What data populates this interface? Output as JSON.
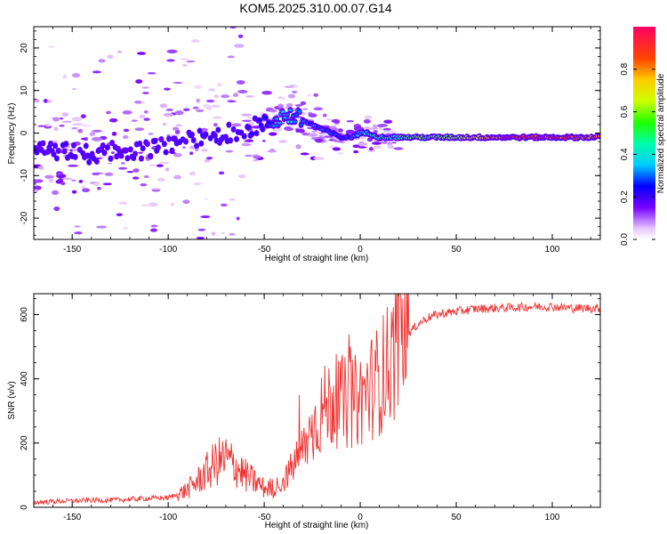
{
  "title": "KOM5.2025.310.00.07.G14",
  "chart_data": [
    {
      "type": "heatmap",
      "title": "KOM5.2025.310.00.07.G14",
      "xlabel": "Height of straight line (km)",
      "ylabel": "Frequency (Hz)",
      "xlim": [
        -170,
        125
      ],
      "ylim": [
        -25,
        25
      ],
      "xticks": [
        -150,
        -100,
        -50,
        0,
        50,
        100
      ],
      "xtick_labels": [
        "-150",
        "-100",
        "-50",
        "0",
        "50",
        "100"
      ],
      "yticks": [
        20,
        10,
        0,
        -10,
        -20
      ],
      "ytick_labels": [
        "20",
        "10",
        "0",
        "-10",
        "-20"
      ],
      "colorbar": {
        "label": "Normalized spectral amplitude",
        "range": [
          0,
          1
        ],
        "ticks": [
          0.0,
          0.2,
          0.4,
          0.6,
          0.8
        ],
        "tick_labels": [
          "0.0",
          "0.2",
          "0.4",
          "0.6",
          "0.8"
        ]
      },
      "ridge": {
        "x": [
          -160,
          -140,
          -125,
          -110,
          -100,
          -90,
          -80,
          -70,
          -60,
          -50,
          -45,
          -40,
          -35,
          -30,
          -25,
          -20,
          -15,
          -10,
          -5,
          0,
          5,
          10,
          20,
          30,
          40,
          50,
          60,
          70,
          80,
          90,
          100,
          110,
          125
        ],
        "freq": [
          -4,
          -5,
          -4,
          -4,
          -3,
          -2,
          -1,
          0,
          1,
          2,
          3,
          4,
          4,
          3,
          2,
          1,
          0,
          -1,
          -1,
          0,
          0,
          -1,
          -1,
          -1,
          -1,
          -1,
          -1,
          -1,
          -1,
          -1,
          -1,
          -1,
          -1
        ],
        "amplitude": [
          0.18,
          0.18,
          0.17,
          0.17,
          0.18,
          0.18,
          0.2,
          0.2,
          0.2,
          0.22,
          0.28,
          0.35,
          0.35,
          0.32,
          0.3,
          0.3,
          0.28,
          0.25,
          0.28,
          0.35,
          0.4,
          0.45,
          0.5,
          0.55,
          0.55,
          0.6,
          0.72,
          0.85,
          0.9,
          0.92,
          0.9,
          0.85,
          0.8
        ]
      }
    },
    {
      "type": "line",
      "xlabel": "Height of straight line (km)",
      "ylabel": "SNR (v/v)",
      "xlim": [
        -170,
        125
      ],
      "ylim": [
        0,
        665
      ],
      "xticks": [
        -150,
        -100,
        -50,
        0,
        50,
        100
      ],
      "xtick_labels": [
        "-150",
        "-100",
        "-50",
        "0",
        "50",
        "100"
      ],
      "yticks": [
        0,
        200,
        400,
        600
      ],
      "ytick_labels": [
        "0",
        "200",
        "400",
        "600"
      ],
      "color": "#ee3333",
      "series": [
        {
          "name": "SNR",
          "x": [
            -170,
            -160,
            -150,
            -140,
            -130,
            -120,
            -110,
            -100,
            -95,
            -90,
            -85,
            -80,
            -75,
            -70,
            -65,
            -60,
            -55,
            -50,
            -45,
            -40,
            -35,
            -30,
            -25,
            -20,
            -15,
            -10,
            -5,
            0,
            5,
            10,
            15,
            20,
            25,
            30,
            35,
            40,
            50,
            60,
            70,
            80,
            90,
            100,
            110,
            125
          ],
          "y": [
            15,
            18,
            20,
            22,
            22,
            25,
            28,
            30,
            40,
            55,
            80,
            110,
            140,
            150,
            130,
            100,
            80,
            60,
            60,
            80,
            130,
            180,
            240,
            300,
            330,
            330,
            320,
            340,
            370,
            400,
            450,
            500,
            540,
            570,
            590,
            600,
            610,
            618,
            620,
            622,
            625,
            625,
            620,
            620
          ]
        }
      ]
    }
  ]
}
